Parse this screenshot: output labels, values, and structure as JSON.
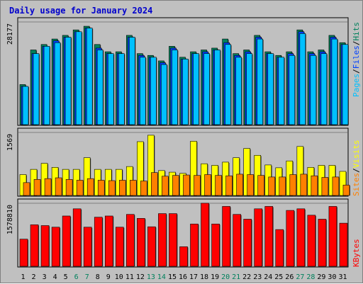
{
  "title": "Daily usage for January 2024",
  "colors": {
    "background": "#c0c0c0",
    "panel": "#c0c0c0",
    "title": "#0000cc",
    "hits": "#00805c",
    "files": "#0040ff",
    "pages": "#00c0ff",
    "visits": "#ffff00",
    "sites": "#ff8000",
    "kbytes": "#ff0000",
    "weekend_label": "#00805c",
    "weekday_label": "#000000",
    "gridline": "#808080"
  },
  "legend": {
    "pages": "Pages",
    "files": "Files",
    "hits": "Hits",
    "sites": "Sites",
    "visits": "Visits",
    "kbytes": "KBytes",
    "separator": "/"
  },
  "chart_data": {
    "type": "bar",
    "title": "Daily usage for January 2024",
    "categories": [
      "1",
      "2",
      "3",
      "4",
      "5",
      "6",
      "7",
      "8",
      "9",
      "10",
      "11",
      "12",
      "13",
      "14",
      "15",
      "16",
      "17",
      "18",
      "19",
      "20",
      "21",
      "22",
      "23",
      "24",
      "25",
      "26",
      "27",
      "28",
      "29",
      "30",
      "31"
    ],
    "weekend_days": [
      "6",
      "7",
      "13",
      "14",
      "20",
      "21",
      "27",
      "28"
    ],
    "panels": [
      {
        "id": "hits-files-pages",
        "y_axis_label": "28177",
        "ymax": 28177,
        "series": [
          {
            "name": "Hits",
            "color": "#00805c",
            "values": [
              11000,
              20500,
              22000,
              23500,
              24500,
              26000,
              27000,
              22000,
              20000,
              20000,
              24500,
              19500,
              19000,
              17500,
              21500,
              18500,
              20000,
              20500,
              21000,
              23500,
              19500,
              20500,
              24500,
              20000,
              19000,
              20000,
              26000,
              20000,
              20500,
              24500,
              22500
            ]
          },
          {
            "name": "Files",
            "color": "#0040ff",
            "values": [
              10500,
              19500,
              21500,
              23000,
              24000,
              25500,
              26500,
              21000,
              19500,
              19500,
              24000,
              19000,
              18500,
              17000,
              21000,
              18000,
              19500,
              20000,
              20500,
              22500,
              19000,
              20000,
              24000,
              19500,
              18500,
              19500,
              25500,
              19500,
              20000,
              24000,
              22000
            ]
          },
          {
            "name": "Pages",
            "color": "#00c0ff",
            "values": [
              10500,
              19500,
              21500,
              22500,
              24000,
              25500,
              26500,
              20500,
              19500,
              19500,
              24000,
              18500,
              18500,
              16500,
              20500,
              18000,
              19500,
              19500,
              20500,
              22000,
              18500,
              19500,
              23500,
              19500,
              18500,
              19000,
              25000,
              19000,
              19500,
              23500,
              22000
            ]
          }
        ]
      },
      {
        "id": "visits-sites",
        "y_axis_label": "1569",
        "ymax": 1569,
        "series": [
          {
            "name": "Visits",
            "color": "#ffff00",
            "values": [
              520,
              650,
              800,
              700,
              650,
              650,
              940,
              650,
              650,
              650,
              720,
              1340,
              1500,
              620,
              580,
              550,
              1350,
              790,
              750,
              830,
              940,
              1170,
              1000,
              760,
              690,
              860,
              1220,
              700,
              750,
              750,
              600
            ]
          },
          {
            "name": "Sites",
            "color": "#ff8000",
            "values": [
              320,
              400,
              420,
              440,
              400,
              380,
              420,
              380,
              370,
              380,
              380,
              360,
              570,
              480,
              500,
              510,
              500,
              520,
              500,
              490,
              530,
              520,
              500,
              460,
              460,
              520,
              530,
              490,
              450,
              460,
              260
            ]
          }
        ]
      },
      {
        "id": "kbytes",
        "y_axis_label": "1578810",
        "ymax": 1578810,
        "series": [
          {
            "name": "KBytes",
            "color": "#ff0000",
            "values": [
              680000,
              1040000,
              1020000,
              980000,
              1260000,
              1440000,
              980000,
              1230000,
              1260000,
              980000,
              1300000,
              1200000,
              990000,
              1320000,
              1320000,
              490000,
              1060000,
              1580000,
              1060000,
              1500000,
              1300000,
              1180000,
              1440000,
              1500000,
              920000,
              1400000,
              1440000,
              1280000,
              1180000,
              1500000,
              1080000
            ]
          }
        ]
      }
    ]
  }
}
